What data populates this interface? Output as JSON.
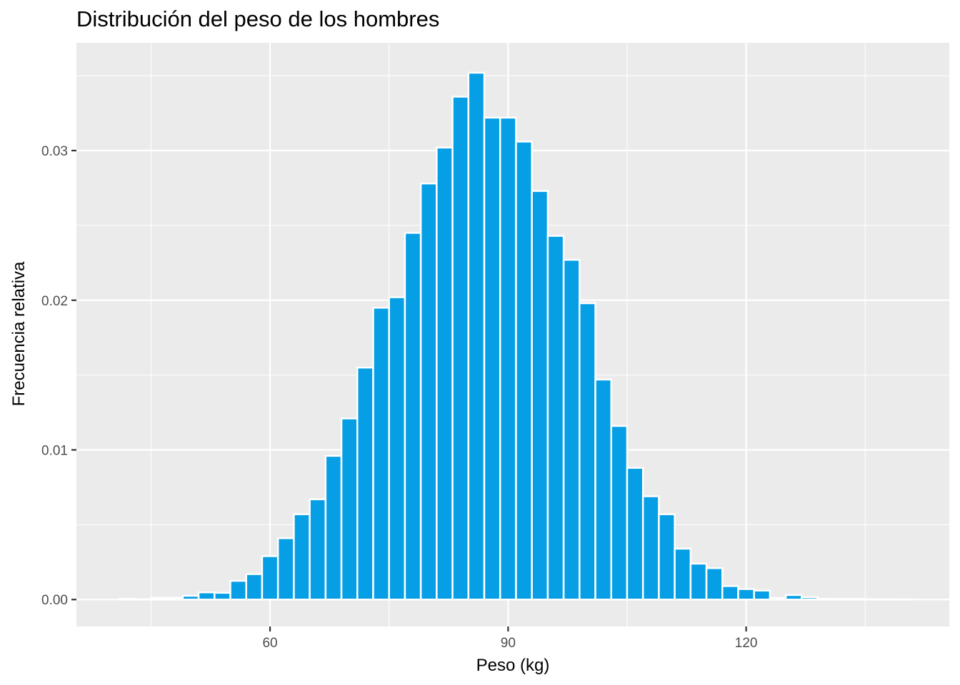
{
  "chart_data": {
    "type": "bar",
    "title": "Distribución del peso de los hombres",
    "xlabel": "Peso (kg)",
    "ylabel": "Frecuencia relativa",
    "xlim": [
      35.6,
      145.6
    ],
    "ylim": [
      -0.0018,
      0.0372
    ],
    "x_ticks": [
      60,
      90,
      120
    ],
    "y_ticks": [
      0.0,
      0.01,
      0.02,
      0.03
    ],
    "x_tick_labels": [
      "60",
      "90",
      "120"
    ],
    "y_tick_labels": [
      "0.00",
      "0.01",
      "0.02",
      "0.03"
    ],
    "grid": true,
    "bin_width": 2,
    "bin_centers": [
      42,
      44,
      46,
      48,
      50,
      52,
      54,
      56,
      58,
      60,
      62,
      64,
      66,
      68,
      70,
      72,
      74,
      76,
      78,
      80,
      82,
      84,
      86,
      88,
      90,
      92,
      94,
      96,
      98,
      100,
      102,
      104,
      106,
      108,
      110,
      112,
      114,
      116,
      118,
      120,
      122,
      124,
      126,
      128,
      130,
      132,
      134,
      136,
      138,
      140
    ],
    "values": [
      5e-05,
      2e-05,
      0.00012,
      0.00012,
      0.00025,
      0.00048,
      0.00045,
      0.00125,
      0.0017,
      0.0029,
      0.0041,
      0.0057,
      0.0067,
      0.0096,
      0.0121,
      0.0155,
      0.0195,
      0.0202,
      0.0245,
      0.0278,
      0.0302,
      0.0336,
      0.0352,
      0.0322,
      0.0322,
      0.0306,
      0.0273,
      0.0243,
      0.0227,
      0.0198,
      0.0147,
      0.0116,
      0.0088,
      0.0069,
      0.0057,
      0.0034,
      0.0024,
      0.0021,
      0.0009,
      0.0007,
      0.0006,
      0.0001,
      0.0003,
      0.00015,
      5e-05,
      4e-05,
      4e-05,
      2e-05,
      2e-05,
      1e-05
    ],
    "bar_color": "#069fe6",
    "panel_background": "#ebebeb"
  }
}
